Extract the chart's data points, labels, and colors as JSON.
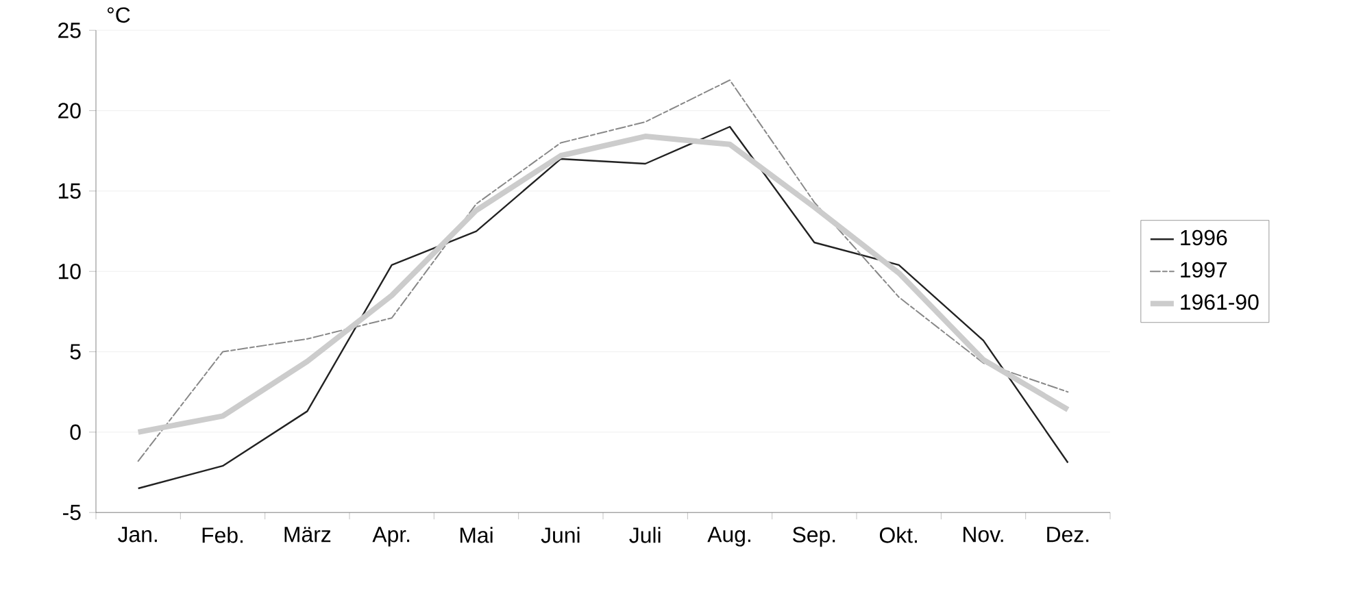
{
  "chart_data": {
    "type": "line",
    "ylabel": "°C",
    "categories": [
      "Jan.",
      "Feb.",
      "März",
      "Apr.",
      "Mai",
      "Juni",
      "Juli",
      "Aug.",
      "Sep.",
      "Okt.",
      "Nov.",
      "Dez."
    ],
    "series": [
      {
        "name": "1996",
        "color": "#222222",
        "line_style": "solid",
        "values": [
          -3.5,
          -2.1,
          1.3,
          10.4,
          12.5,
          17.0,
          16.7,
          19.0,
          11.8,
          10.4,
          5.7,
          -1.9
        ]
      },
      {
        "name": "1997",
        "color": "#888888",
        "line_style": "dashed",
        "values": [
          -1.8,
          5.0,
          5.8,
          7.1,
          14.2,
          18.0,
          19.3,
          21.9,
          14.3,
          8.4,
          4.3,
          2.5
        ]
      },
      {
        "name": "1961-90",
        "color": "#cccccc",
        "line_style": "solid",
        "values": [
          0.0,
          1.0,
          4.4,
          8.5,
          13.8,
          17.2,
          18.4,
          17.9,
          14.0,
          9.9,
          4.5,
          1.4
        ]
      }
    ],
    "ylim": [
      -5,
      25
    ],
    "yticks": [
      -5,
      0,
      5,
      10,
      15,
      20,
      25
    ],
    "grid": "y",
    "legend": "right"
  }
}
